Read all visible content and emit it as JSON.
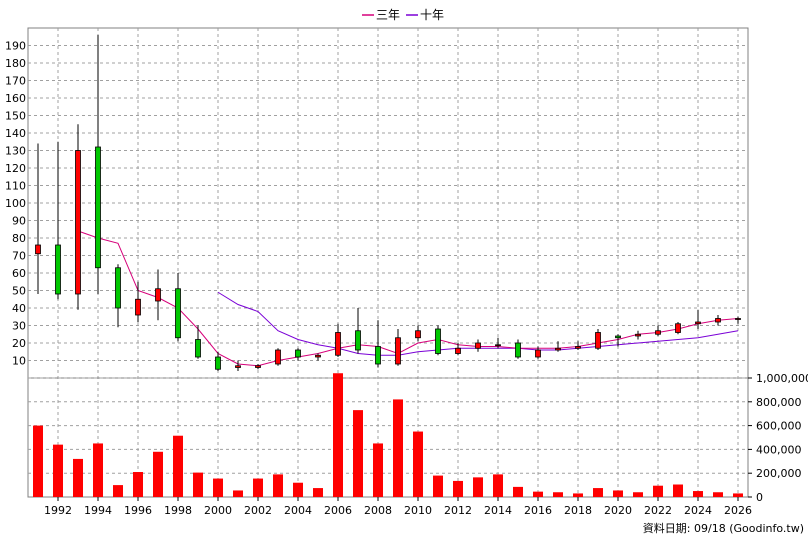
{
  "chart_data": {
    "type": "candlestick-with-volume",
    "legend": [
      {
        "label": "三年",
        "color": "#d6007a"
      },
      {
        "label": "十年",
        "color": "#7a00d6"
      }
    ],
    "source_label": "資料日期: 09/18  (Goodinfo.tw)",
    "price_axis": {
      "min": 0,
      "max": 200,
      "ticks": [
        10,
        20,
        30,
        40,
        50,
        60,
        70,
        80,
        90,
        100,
        110,
        120,
        130,
        140,
        150,
        160,
        170,
        180,
        190
      ]
    },
    "volume_axis": {
      "min": 0,
      "max": 1000000,
      "ticks": [
        0,
        200000,
        400000,
        600000,
        800000,
        1000000
      ],
      "tick_labels": [
        "0",
        "200,000",
        "400,000",
        "600,000",
        "800,000",
        "1,000,000"
      ]
    },
    "x_axis": {
      "min": 1990.5,
      "max": 2026.5,
      "ticks": [
        1992,
        1994,
        1996,
        1998,
        2000,
        2002,
        2004,
        2006,
        2008,
        2010,
        2012,
        2014,
        2016,
        2018,
        2020,
        2022,
        2024,
        2026
      ],
      "tick_labels": [
        "1992",
        "1994",
        "1996",
        "1998",
        "2000",
        "2002",
        "2004",
        "2006",
        "2008",
        "2010",
        "2012",
        "2014",
        "2016",
        "2018",
        "2020",
        "2022",
        "2024",
        "2026"
      ]
    },
    "candles": [
      {
        "year": 1991,
        "open": 71,
        "close": 76,
        "high": 134,
        "low": 48
      },
      {
        "year": 1992,
        "open": 76,
        "close": 48,
        "high": 135,
        "low": 45
      },
      {
        "year": 1993,
        "open": 48,
        "close": 130,
        "high": 145,
        "low": 39
      },
      {
        "year": 1994,
        "open": 132,
        "close": 63,
        "high": 196,
        "low": 48
      },
      {
        "year": 1995,
        "open": 63,
        "close": 40,
        "high": 65,
        "low": 29
      },
      {
        "year": 1996,
        "open": 36,
        "close": 45,
        "high": 55,
        "low": 32
      },
      {
        "year": 1997,
        "open": 44,
        "close": 51,
        "high": 62,
        "low": 33
      },
      {
        "year": 1998,
        "open": 51,
        "close": 23,
        "high": 60,
        "low": 21
      },
      {
        "year": 1999,
        "open": 22,
        "close": 12,
        "high": 30,
        "low": 11
      },
      {
        "year": 2000,
        "open": 12,
        "close": 5,
        "high": 15,
        "low": 4
      },
      {
        "year": 2001,
        "open": 6,
        "close": 7,
        "high": 10,
        "low": 4
      },
      {
        "year": 2002,
        "open": 6,
        "close": 7,
        "high": 8,
        "low": 5
      },
      {
        "year": 2003,
        "open": 8,
        "close": 16,
        "high": 17,
        "low": 7
      },
      {
        "year": 2004,
        "open": 16,
        "close": 12,
        "high": 17,
        "low": 10
      },
      {
        "year": 2005,
        "open": 12,
        "close": 13,
        "high": 14,
        "low": 10
      },
      {
        "year": 2006,
        "open": 13,
        "close": 26,
        "high": 31,
        "low": 12
      },
      {
        "year": 2007,
        "open": 27,
        "close": 16,
        "high": 40,
        "low": 14
      },
      {
        "year": 2008,
        "open": 18,
        "close": 8,
        "high": 33,
        "low": 6
      },
      {
        "year": 2009,
        "open": 8,
        "close": 23,
        "high": 28,
        "low": 7
      },
      {
        "year": 2010,
        "open": 23,
        "close": 27,
        "high": 30,
        "low": 21
      },
      {
        "year": 2011,
        "open": 28,
        "close": 14,
        "high": 30,
        "low": 13
      },
      {
        "year": 2012,
        "open": 14,
        "close": 17,
        "high": 20,
        "low": 13
      },
      {
        "year": 2013,
        "open": 17,
        "close": 20,
        "high": 22,
        "low": 15
      },
      {
        "year": 2014,
        "open": 19,
        "close": 19,
        "high": 23,
        "low": 17
      },
      {
        "year": 2015,
        "open": 20,
        "close": 12,
        "high": 22,
        "low": 11
      },
      {
        "year": 2016,
        "open": 12,
        "close": 16,
        "high": 18,
        "low": 11
      },
      {
        "year": 2017,
        "open": 16,
        "close": 17,
        "high": 21,
        "low": 15
      },
      {
        "year": 2018,
        "open": 17,
        "close": 18,
        "high": 21,
        "low": 16
      },
      {
        "year": 2019,
        "open": 17,
        "close": 26,
        "high": 28,
        "low": 16
      },
      {
        "year": 2020,
        "open": 24,
        "close": 23,
        "high": 25,
        "low": 18
      },
      {
        "year": 2021,
        "open": 24,
        "close": 25,
        "high": 27,
        "low": 22
      },
      {
        "year": 2022,
        "open": 25,
        "close": 27,
        "high": 30,
        "low": 24
      },
      {
        "year": 2023,
        "open": 26,
        "close": 31,
        "high": 32,
        "low": 25
      },
      {
        "year": 2024,
        "open": 31,
        "close": 32,
        "high": 39,
        "low": 28
      },
      {
        "year": 2025,
        "open": 32,
        "close": 34,
        "high": 36,
        "low": 30
      },
      {
        "year": 2026,
        "open": 34,
        "close": 34,
        "high": 35,
        "low": 31
      }
    ],
    "ma_3y": {
      "x": [
        1993,
        1994,
        1995,
        1996,
        1997,
        1998,
        1999,
        2000,
        2001,
        2002,
        2003,
        2004,
        2005,
        2006,
        2007,
        2008,
        2009,
        2010,
        2011,
        2012,
        2013,
        2014,
        2015,
        2016,
        2017,
        2018,
        2019,
        2020,
        2021,
        2022,
        2023,
        2024,
        2025,
        2026
      ],
      "y": [
        84,
        80,
        77,
        50,
        46,
        40,
        28,
        14,
        8,
        7,
        10,
        12,
        14,
        17,
        19,
        18,
        14,
        20,
        22,
        19,
        18,
        18,
        17,
        17,
        17,
        18,
        20,
        22,
        25,
        26,
        28,
        31,
        33,
        34
      ]
    },
    "ma_10y": {
      "x": [
        2000,
        2001,
        2002,
        2003,
        2004,
        2005,
        2006,
        2007,
        2008,
        2009,
        2010,
        2011,
        2012,
        2013,
        2014,
        2015,
        2016,
        2017,
        2018,
        2019,
        2020,
        2021,
        2022,
        2023,
        2024,
        2025,
        2026
      ],
      "y": [
        49,
        42,
        38,
        27,
        22,
        19,
        17,
        14,
        13,
        13,
        15,
        16,
        17,
        17,
        17,
        17,
        16,
        16,
        17,
        18,
        19,
        20,
        21,
        22,
        23,
        25,
        27
      ]
    },
    "volume": [
      {
        "year": 1991,
        "value": 600000
      },
      {
        "year": 1992,
        "value": 440000
      },
      {
        "year": 1993,
        "value": 320000
      },
      {
        "year": 1994,
        "value": 450000
      },
      {
        "year": 1995,
        "value": 100000
      },
      {
        "year": 1996,
        "value": 210000
      },
      {
        "year": 1997,
        "value": 380000
      },
      {
        "year": 1998,
        "value": 515000
      },
      {
        "year": 1999,
        "value": 205000
      },
      {
        "year": 2000,
        "value": 155000
      },
      {
        "year": 2001,
        "value": 55000
      },
      {
        "year": 2002,
        "value": 155000
      },
      {
        "year": 2003,
        "value": 190000
      },
      {
        "year": 2004,
        "value": 120000
      },
      {
        "year": 2005,
        "value": 75000
      },
      {
        "year": 2006,
        "value": 1040000
      },
      {
        "year": 2007,
        "value": 730000
      },
      {
        "year": 2008,
        "value": 450000
      },
      {
        "year": 2009,
        "value": 820000
      },
      {
        "year": 2010,
        "value": 550000
      },
      {
        "year": 2011,
        "value": 180000
      },
      {
        "year": 2012,
        "value": 135000
      },
      {
        "year": 2013,
        "value": 165000
      },
      {
        "year": 2014,
        "value": 190000
      },
      {
        "year": 2015,
        "value": 85000
      },
      {
        "year": 2016,
        "value": 45000
      },
      {
        "year": 2017,
        "value": 40000
      },
      {
        "year": 2018,
        "value": 30000
      },
      {
        "year": 2019,
        "value": 75000
      },
      {
        "year": 2020,
        "value": 55000
      },
      {
        "year": 2021,
        "value": 40000
      },
      {
        "year": 2022,
        "value": 95000
      },
      {
        "year": 2023,
        "value": 105000
      },
      {
        "year": 2024,
        "value": 50000
      },
      {
        "year": 2025,
        "value": 40000
      },
      {
        "year": 2026,
        "value": 30000
      }
    ],
    "colors": {
      "up": "#ff0000",
      "down": "#00c800",
      "volume": "#ff0000",
      "grid": "#a0a0a0"
    }
  }
}
